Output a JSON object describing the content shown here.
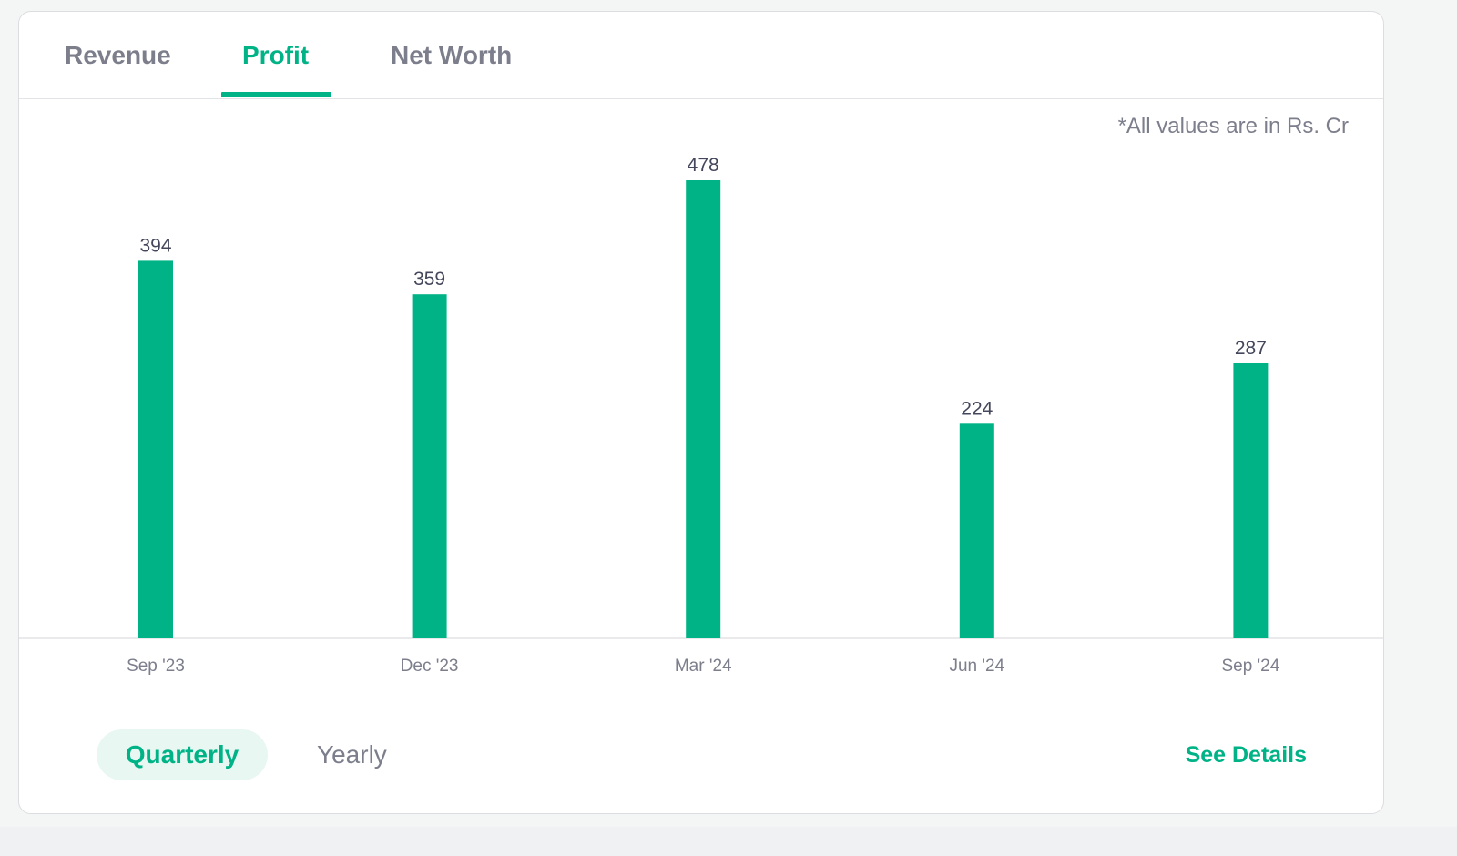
{
  "tabs": [
    {
      "label": "Revenue",
      "active": false
    },
    {
      "label": "Profit",
      "active": true
    },
    {
      "label": "Net Worth",
      "active": false
    }
  ],
  "note": "*All values are in Rs. Cr",
  "periods": {
    "quarterly": "Quarterly",
    "yearly": "Yearly",
    "selected": "Quarterly"
  },
  "see_details": "See Details",
  "colors": {
    "accent": "#00b386",
    "bar": "#00b386",
    "muted_text": "#7c7e8c",
    "value_text": "#44475b"
  },
  "chart_data": {
    "type": "bar",
    "categories": [
      "Sep '23",
      "Dec '23",
      "Mar '24",
      "Jun '24",
      "Sep '24"
    ],
    "values": [
      394,
      359,
      478,
      224,
      287
    ],
    "title": "",
    "xlabel": "",
    "ylabel": "",
    "ylim": [
      0,
      520
    ],
    "grid": false,
    "data_labels": true
  }
}
